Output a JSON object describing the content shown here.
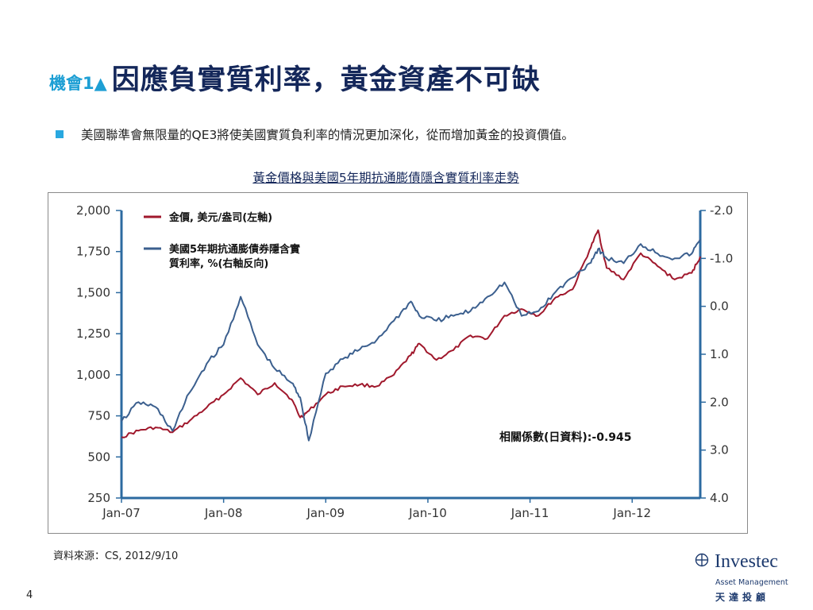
{
  "title": {
    "prefix": "機會1▲",
    "main": "因應負實質利率，黃金資產不可缺"
  },
  "bullet": "美國聯準會無限量的QE3將使美國實質負利率的情況更加深化，從而增加黃金的投資價值。",
  "chart_heading": "黃金價格與美國5年期抗通膨債隱含實質利率走勢",
  "source": "資料來源：CS, 2012/9/10",
  "page_number": "4",
  "logo": {
    "name": "Investec",
    "sub": "Asset Management",
    "cn": "天達投顧"
  },
  "colors": {
    "gold": "#a0182c",
    "rate": "#3b5f8e",
    "axis": "#2c6aa0",
    "title": "#14275a",
    "accent": "#29a8e0"
  },
  "chart_data": {
    "type": "line",
    "title": "黃金價格與美國5年期抗通膨債隱含實質利率走勢",
    "x_ticks": [
      "Jan-07",
      "Jan-08",
      "Jan-09",
      "Jan-10",
      "Jan-11",
      "Jan-12"
    ],
    "x_range": [
      "2007-01",
      "2012-09"
    ],
    "left_axis": {
      "ticks": [
        "2,000",
        "1,750",
        "1,500",
        "1,250",
        "1,000",
        "750",
        "500",
        "250"
      ],
      "range": [
        250,
        2000
      ]
    },
    "right_axis": {
      "ticks": [
        "-2.0",
        "-1.0",
        "0.0",
        "1.0",
        "2.0",
        "3.0",
        "4.0"
      ],
      "range": [
        -2.0,
        4.0
      ],
      "inverted": true
    },
    "annotation": "相關係數(日資料):-0.945",
    "series": [
      {
        "name": "金價, 美元/盎司(左軸)",
        "axis": "left",
        "x": [
          "2007-01",
          "2007-03",
          "2007-05",
          "2007-07",
          "2007-09",
          "2007-11",
          "2008-01",
          "2008-03",
          "2008-05",
          "2008-07",
          "2008-09",
          "2008-10",
          "2008-11",
          "2009-01",
          "2009-03",
          "2009-05",
          "2009-07",
          "2009-09",
          "2009-11",
          "2009-12",
          "2010-02",
          "2010-04",
          "2010-06",
          "2010-08",
          "2010-10",
          "2010-12",
          "2011-02",
          "2011-04",
          "2011-06",
          "2011-08",
          "2011-09",
          "2011-10",
          "2011-12",
          "2012-02",
          "2012-04",
          "2012-06",
          "2012-08",
          "2012-09"
        ],
        "values": [
          620,
          660,
          680,
          650,
          720,
          800,
          880,
          980,
          880,
          950,
          850,
          740,
          780,
          880,
          930,
          940,
          930,
          1000,
          1120,
          1190,
          1090,
          1150,
          1240,
          1220,
          1360,
          1400,
          1360,
          1470,
          1520,
          1760,
          1880,
          1650,
          1580,
          1740,
          1660,
          1580,
          1620,
          1720
        ]
      },
      {
        "name": "美國5年期抗通膨債券隱含實質利率, %(右軸反向)",
        "axis": "right",
        "x": [
          "2007-01",
          "2007-03",
          "2007-05",
          "2007-07",
          "2007-09",
          "2007-11",
          "2008-01",
          "2008-03",
          "2008-05",
          "2008-07",
          "2008-09",
          "2008-10",
          "2008-11",
          "2009-01",
          "2009-03",
          "2009-05",
          "2009-07",
          "2009-09",
          "2009-11",
          "2009-12",
          "2010-02",
          "2010-04",
          "2010-06",
          "2010-08",
          "2010-10",
          "2010-12",
          "2011-02",
          "2011-04",
          "2011-06",
          "2011-08",
          "2011-09",
          "2011-10",
          "2011-12",
          "2012-02",
          "2012-04",
          "2012-06",
          "2012-08",
          "2012-09"
        ],
        "values": [
          2.4,
          2.0,
          2.1,
          2.6,
          1.8,
          1.2,
          0.8,
          -0.2,
          0.8,
          1.3,
          1.6,
          1.9,
          2.8,
          1.4,
          1.1,
          0.9,
          0.7,
          0.3,
          -0.1,
          0.2,
          0.3,
          0.2,
          0.1,
          -0.2,
          -0.5,
          0.2,
          0.1,
          -0.3,
          -0.6,
          -0.9,
          -1.2,
          -1.0,
          -0.9,
          -1.3,
          -1.1,
          -1.0,
          -1.1,
          -1.4
        ]
      }
    ]
  }
}
